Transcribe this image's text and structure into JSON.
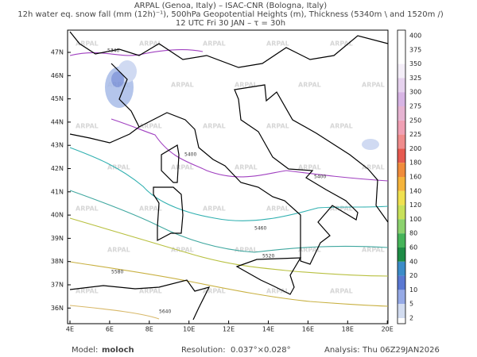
{
  "header": {
    "line1": "ARPAL (Genoa, Italy)  –  ISAC-CNR (Bologna, Italy)",
    "line2": "12h water eq. snow fall (mm (12h)⁻¹), 500hPa Geopotential Heights (m), Thickness (5340m \\ and 1520m /)",
    "line3": "12 UTC Fri 30 JAN  –  τ = 30h"
  },
  "map": {
    "lat_labels": [
      "47N",
      "46N",
      "45N",
      "44N",
      "43N",
      "42N",
      "41N",
      "40N",
      "39N",
      "38N",
      "37N",
      "36N"
    ],
    "lon_labels": [
      "4E",
      "6E",
      "8E",
      "10E",
      "12E",
      "14E",
      "16E",
      "18E",
      "20E"
    ],
    "watermark": "ARPAL",
    "contour_labels": [
      "5340",
      "5400",
      "5400",
      "5460",
      "5520",
      "5580",
      "5640"
    ]
  },
  "colorbar": {
    "labels": [
      400,
      375,
      350,
      325,
      300,
      275,
      250,
      225,
      200,
      180,
      160,
      140,
      120,
      100,
      80,
      60,
      40,
      20,
      10,
      5,
      2
    ],
    "colors": [
      "#ffffff",
      "#ffffff",
      "#f4eef8",
      "#e6d2ee",
      "#d7b4e4",
      "#e6b4d2",
      "#f0a0b4",
      "#f08c8c",
      "#e65a50",
      "#f08c3c",
      "#f5b43c",
      "#f0e150",
      "#c8e15a",
      "#8cd26e",
      "#46b45a",
      "#1e8c46",
      "#3c8cc8",
      "#5a78d2",
      "#96aae6",
      "#d2dcf0"
    ]
  },
  "footer": {
    "model_label": "Model:",
    "model": "moloch",
    "resolution_label": "Resolution:",
    "resolution": "0.037°×0.028°",
    "analysis_label": "Analysis:",
    "analysis": "Thu 06Z29JAN2026"
  }
}
